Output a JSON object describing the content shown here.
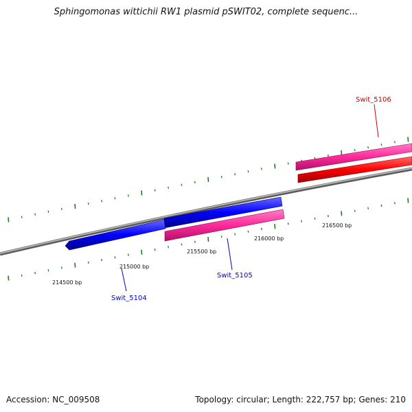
{
  "title": "Sphingomonas wittichii RW1 plasmid pSWIT02, complete sequenc...",
  "footer": {
    "accession": "Accession: NC_009508",
    "summary": "Topology: circular; Length: 222,757 bp; Genes: 210"
  },
  "colors": {
    "backbone": "#8a8a8a",
    "tick": "#1e7a1e",
    "forward_cds": "#ff1493",
    "forward_gene": "#ff0000",
    "reverse_gene": "#0000ff",
    "label_forward": "#cc0000",
    "label_reverse": "#0000cc"
  },
  "scale_labels": [
    "214500 bp",
    "215000 bp",
    "215500 bp",
    "216000 bp",
    "216500 bp"
  ],
  "genes": [
    {
      "name": "Swit_5104",
      "strand": "reverse"
    },
    {
      "name": "Swit_5105",
      "strand": "reverse"
    },
    {
      "name": "Swit_5106",
      "strand": "forward"
    }
  ]
}
